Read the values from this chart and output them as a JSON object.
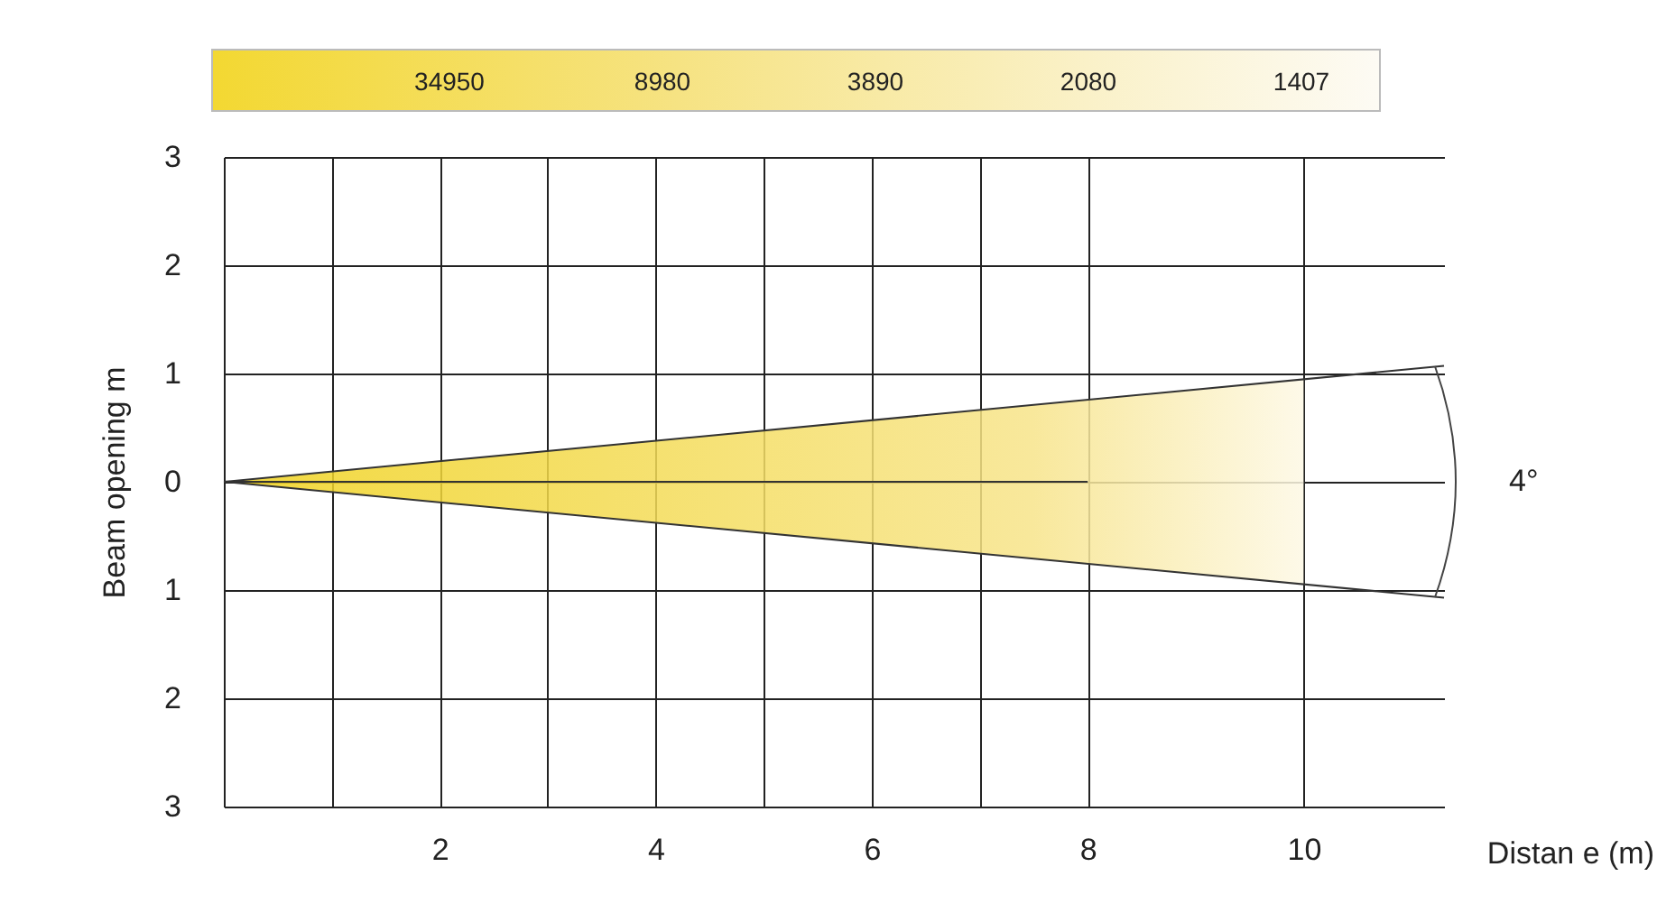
{
  "chart_data": {
    "type": "line",
    "xlabel": "Distan e (m)",
    "ylabel": "Beam opening  m",
    "annotations": [
      "34950",
      "8980",
      "3890",
      "2080",
      "1407",
      "4°"
    ],
    "series": [
      {
        "color": "#333333",
        "x": [
          0,
          8,
          10
        ],
        "values": [
          0,
          0,
          null
        ],
        "lower": [
          0,
          -0.76,
          -0.95
        ],
        "upper": [
          0,
          0.76,
          0.95
        ]
      },
      {
        "color": "#333333",
        "x": [
          0,
          11.3
        ],
        "values": [
          0,
          1.07
        ]
      },
      {
        "color": "#333333",
        "x": [
          0,
          11.3
        ],
        "values": [
          0,
          -1.07
        ]
      }
    ],
    "xlim": [
      0,
      11.3
    ],
    "xticks": [
      {
        "value": 0,
        "label": null
      },
      {
        "value": 1,
        "label": null
      },
      2,
      {
        "value": 3,
        "label": null
      },
      4,
      {
        "value": 5,
        "label": null
      },
      6,
      {
        "value": 7,
        "label": null
      },
      8,
      10
    ],
    "ylim": [
      -3,
      3
    ],
    "yticks": [
      {
        "value": -3,
        "label": "3"
      },
      {
        "value": -2,
        "label": "2"
      },
      {
        "value": -1,
        "label": "1"
      },
      0,
      1,
      2,
      3
    ],
    "grid": true,
    "marker": "none",
    "line_style": "solid"
  }
}
